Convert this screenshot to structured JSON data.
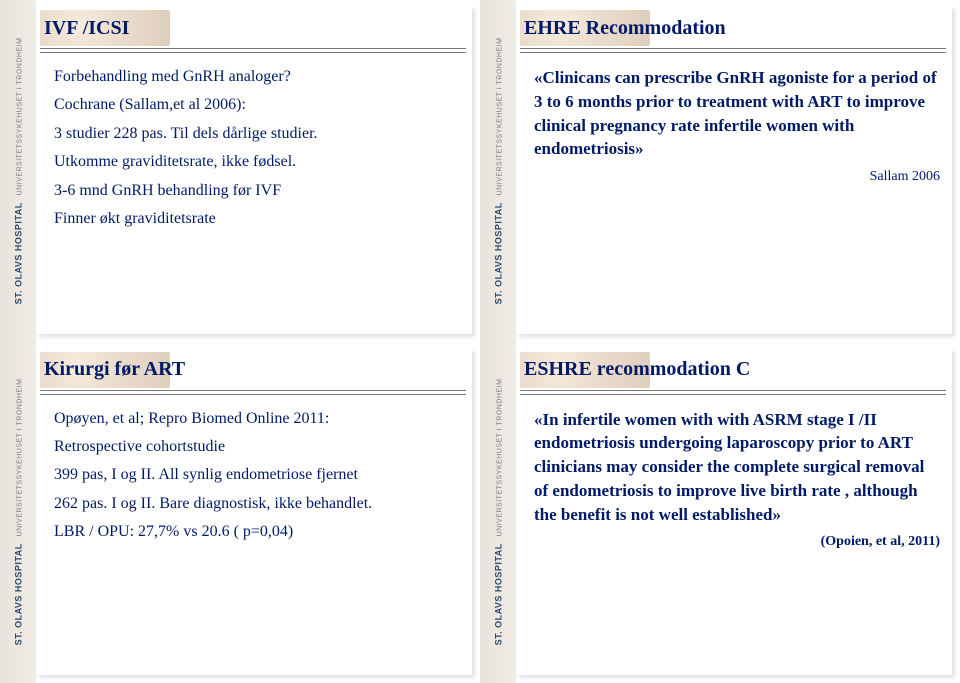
{
  "sidebar": {
    "main": "ST. OLAVS HOSPITAL",
    "sub": "UNIVERSITETSSYKEHUSET I TRONDHEIM"
  },
  "slides": [
    {
      "title": "IVF /ICSI",
      "lines": [
        "Forbehandling med GnRH analoger?",
        "Cochrane (Sallam,et al 2006):",
        "3 studier 228 pas. Til dels dårlige studier.",
        "Utkomme graviditetsrate, ikke fødsel.",
        "3-6 mnd GnRH behandling før IVF",
        "",
        "Finner økt graviditetsrate"
      ]
    },
    {
      "title": "EHRE Recommodation",
      "quote": "«Clinicans can prescribe GnRH agoniste for a period of 3 to 6 months prior to treatment with ART to improve clinical pregnancy rate infertile women with endometriosis»",
      "cite": "Sallam 2006"
    },
    {
      "title": "Kirurgi før ART",
      "lines": [
        "Opøyen, et al; Repro Biomed Online 2011:",
        "Retrospective cohortstudie",
        "",
        "399 pas, I og II. All synlig endometriose fjernet",
        "262 pas. I og II. Bare diagnostisk, ikke behandlet.",
        "",
        "LBR / OPU:  27,7% vs 20.6 ( p=0,04)"
      ]
    },
    {
      "title": "ESHRE recommodation   C",
      "quote": "«In infertile women with with ASRM stage I /II endometriosis undergoing laparoscopy prior to ART clinicians may consider the complete surgical removal of endometriosis to improve live birth rate , although the benefit is not well established»",
      "cite": "(Opoien, et al, 2011)"
    }
  ],
  "colors": {
    "title": "#001a66",
    "text": "#001a66",
    "divider": "#777777",
    "bg": "#ffffff"
  }
}
